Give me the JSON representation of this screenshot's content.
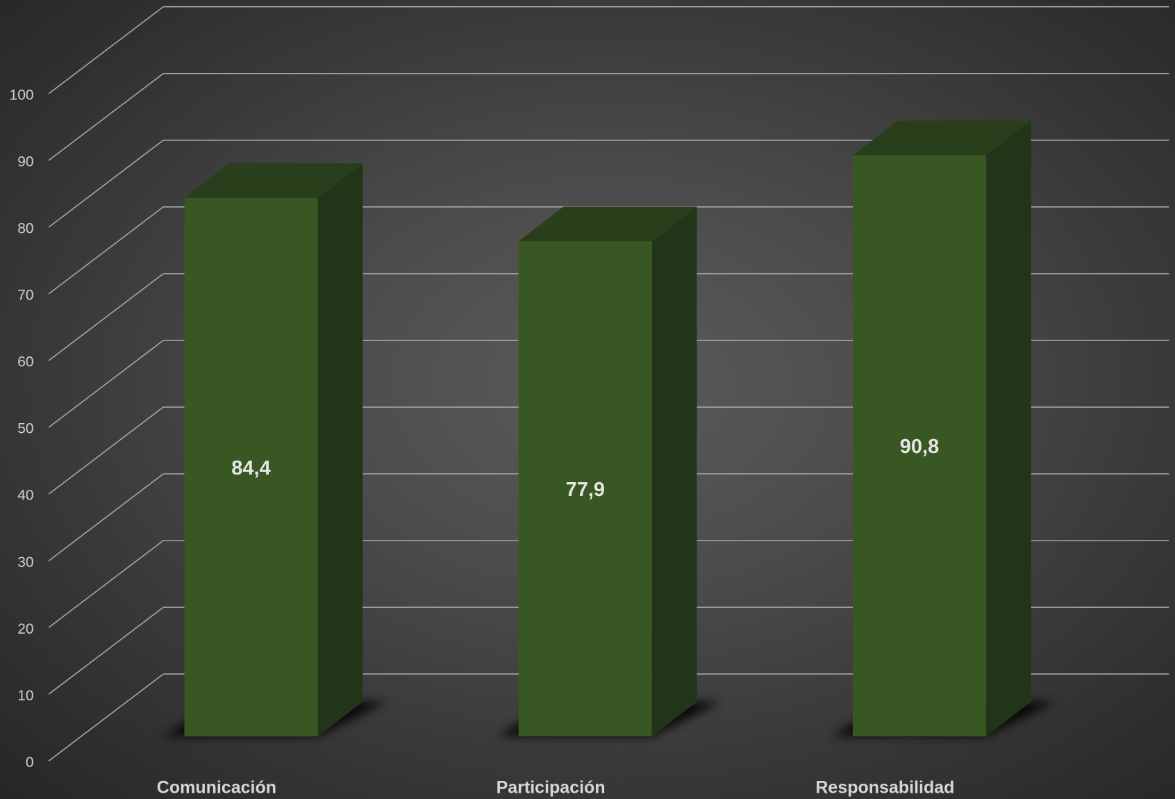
{
  "chart_data": {
    "type": "bar",
    "categories": [
      "Comunicación",
      "Participación",
      "Responsabilidad"
    ],
    "values": [
      84.4,
      77.9,
      90.8
    ],
    "data_labels": [
      "84,4",
      "77,9",
      "90,8"
    ],
    "y_ticks": [
      "0",
      "10",
      "20",
      "30",
      "40",
      "50",
      "60",
      "70",
      "80",
      "90",
      "100"
    ],
    "ylim": [
      0,
      100
    ],
    "title": "",
    "xlabel": "",
    "ylabel": "",
    "grid": true,
    "legend": "none",
    "style": "3d-column"
  },
  "colors": {
    "bar_front": "#385723",
    "bar_side": "#233518",
    "bar_top": "#293f1c",
    "gridline": "#a8a8a8",
    "text": "#d6d6d6"
  }
}
